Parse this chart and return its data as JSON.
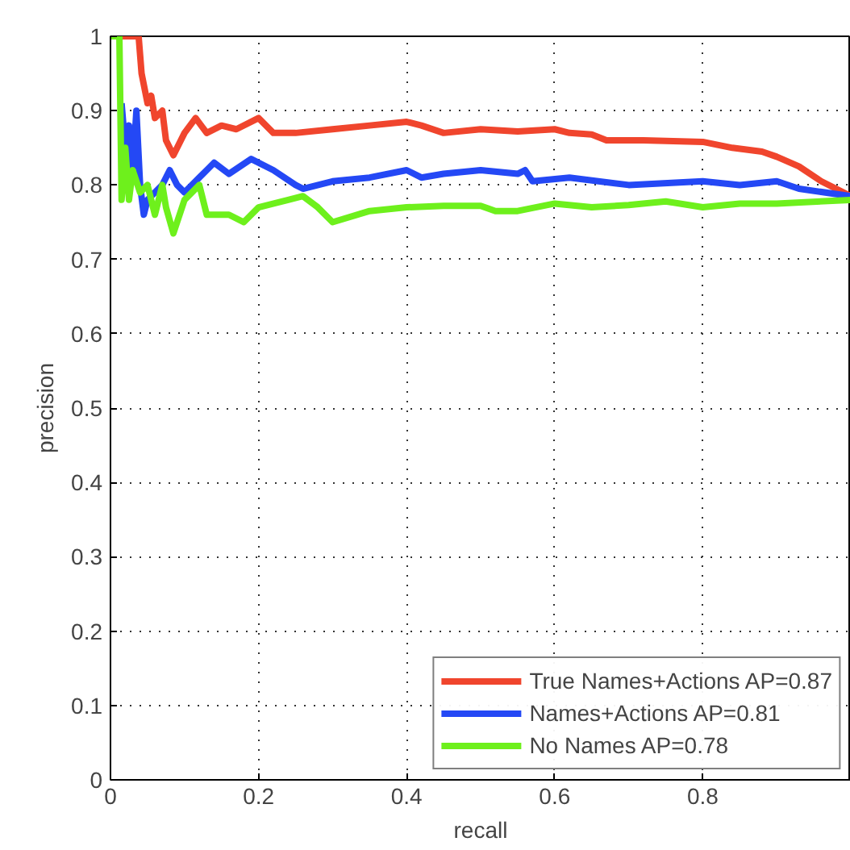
{
  "chart_data": {
    "type": "line",
    "xlabel": "recall",
    "ylabel": "precision",
    "xlim": [
      0,
      1
    ],
    "ylim": [
      0,
      1
    ],
    "xticks": [
      0,
      0.2,
      0.4,
      0.6,
      0.8
    ],
    "yticks": [
      0,
      0.1,
      0.2,
      0.3,
      0.4,
      0.5,
      0.6,
      0.7,
      0.8,
      0.9,
      1
    ],
    "grid": true,
    "legend": "bottom right",
    "line_style": "solid",
    "marker": "none",
    "series": [
      {
        "name": "True Names+Actions AP=0.87",
        "color": "#f0452d",
        "x": [
          0,
          0.038,
          0.042,
          0.05,
          0.055,
          0.06,
          0.07,
          0.075,
          0.085,
          0.1,
          0.115,
          0.13,
          0.15,
          0.17,
          0.2,
          0.22,
          0.25,
          0.3,
          0.35,
          0.4,
          0.42,
          0.45,
          0.5,
          0.55,
          0.6,
          0.62,
          0.65,
          0.67,
          0.72,
          0.8,
          0.84,
          0.88,
          0.9,
          0.93,
          0.96,
          1.0
        ],
        "values": [
          1,
          1,
          0.95,
          0.91,
          0.92,
          0.89,
          0.9,
          0.86,
          0.84,
          0.87,
          0.89,
          0.87,
          0.88,
          0.875,
          0.89,
          0.87,
          0.87,
          0.875,
          0.88,
          0.885,
          0.88,
          0.87,
          0.875,
          0.872,
          0.875,
          0.87,
          0.868,
          0.86,
          0.86,
          0.858,
          0.85,
          0.845,
          0.838,
          0.825,
          0.805,
          0.785
        ]
      },
      {
        "name": "Names+Actions AP=0.81",
        "color": "#2448f5",
        "x": [
          0.015,
          0.02,
          0.025,
          0.03,
          0.035,
          0.04,
          0.045,
          0.05,
          0.06,
          0.07,
          0.08,
          0.09,
          0.1,
          0.12,
          0.14,
          0.16,
          0.19,
          0.22,
          0.25,
          0.26,
          0.3,
          0.35,
          0.4,
          0.42,
          0.45,
          0.5,
          0.55,
          0.56,
          0.57,
          0.62,
          0.7,
          0.8,
          0.85,
          0.9,
          0.93,
          1.0
        ],
        "values": [
          0.91,
          0.85,
          0.88,
          0.82,
          0.9,
          0.8,
          0.76,
          0.78,
          0.79,
          0.8,
          0.82,
          0.8,
          0.79,
          0.81,
          0.83,
          0.815,
          0.835,
          0.82,
          0.8,
          0.795,
          0.805,
          0.81,
          0.82,
          0.81,
          0.815,
          0.82,
          0.815,
          0.82,
          0.805,
          0.81,
          0.8,
          0.805,
          0.8,
          0.805,
          0.795,
          0.785
        ]
      },
      {
        "name": "No Names AP=0.78",
        "color": "#6ef01c",
        "x": [
          0,
          0.012,
          0.015,
          0.02,
          0.025,
          0.03,
          0.04,
          0.05,
          0.06,
          0.07,
          0.075,
          0.085,
          0.1,
          0.12,
          0.13,
          0.16,
          0.18,
          0.2,
          0.24,
          0.26,
          0.28,
          0.3,
          0.35,
          0.4,
          0.45,
          0.5,
          0.52,
          0.55,
          0.6,
          0.65,
          0.7,
          0.75,
          0.8,
          0.85,
          0.9,
          1.0
        ],
        "values": [
          1,
          1,
          0.78,
          0.85,
          0.78,
          0.82,
          0.79,
          0.8,
          0.76,
          0.8,
          0.77,
          0.735,
          0.78,
          0.8,
          0.76,
          0.76,
          0.75,
          0.77,
          0.78,
          0.785,
          0.77,
          0.75,
          0.765,
          0.77,
          0.772,
          0.772,
          0.765,
          0.765,
          0.775,
          0.77,
          0.773,
          0.778,
          0.77,
          0.775,
          0.775,
          0.78
        ]
      }
    ]
  }
}
